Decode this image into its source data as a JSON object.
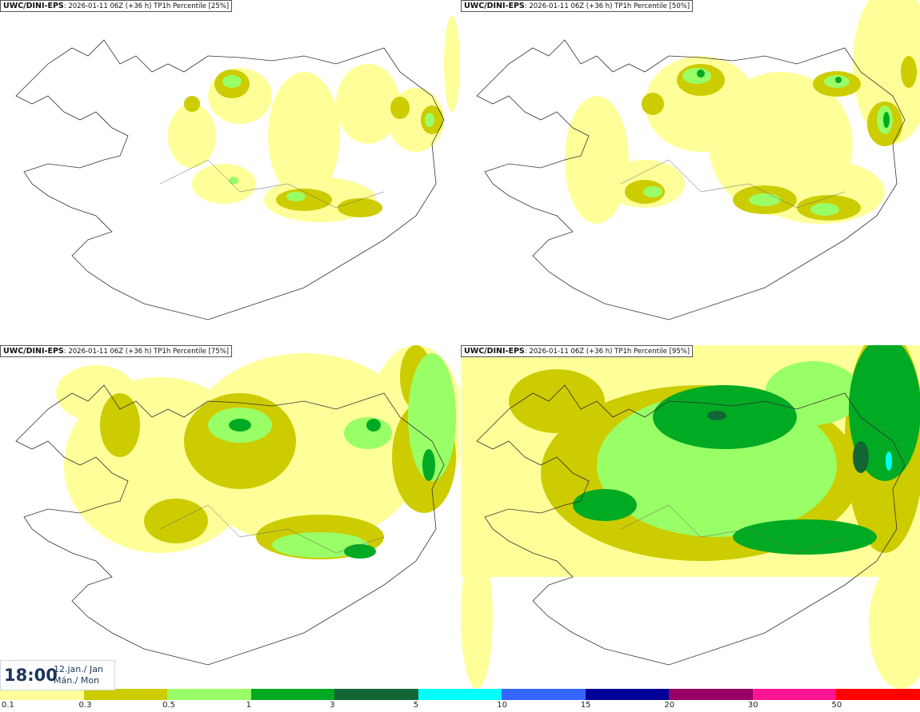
{
  "panels": [
    {
      "model": "UWC/DINI-EPS",
      "info": ": 2026-01-11 06Z (+36 h) TP1h Percentile [25%]"
    },
    {
      "model": "UWC/DINI-EPS",
      "info": ": 2026-01-11 06Z (+36 h) TP1h Percentile [50%]"
    },
    {
      "model": "UWC/DINI-EPS",
      "info": ": 2026-01-11 06Z (+36 h) TP1h Percentile [75%]"
    },
    {
      "model": "UWC/DINI-EPS",
      "info": ": 2026-01-11 06Z (+36 h) TP1h Percentile [95%]"
    }
  ],
  "valid_time": {
    "time": "18:00",
    "date": "12.jan./ Jan",
    "day": "Mán./ Mon"
  },
  "legend": {
    "labels": [
      "0.1",
      "0.3",
      "0.5",
      "1",
      "3",
      "5",
      "10",
      "15",
      "20",
      "30",
      "50"
    ],
    "colors": [
      "#ffff99",
      "#cccc00",
      "#99ff66",
      "#00aa22",
      "#116633",
      "#00ffff",
      "#3366ff",
      "#000099",
      "#990066",
      "#ff1493",
      "#ff0000"
    ]
  }
}
